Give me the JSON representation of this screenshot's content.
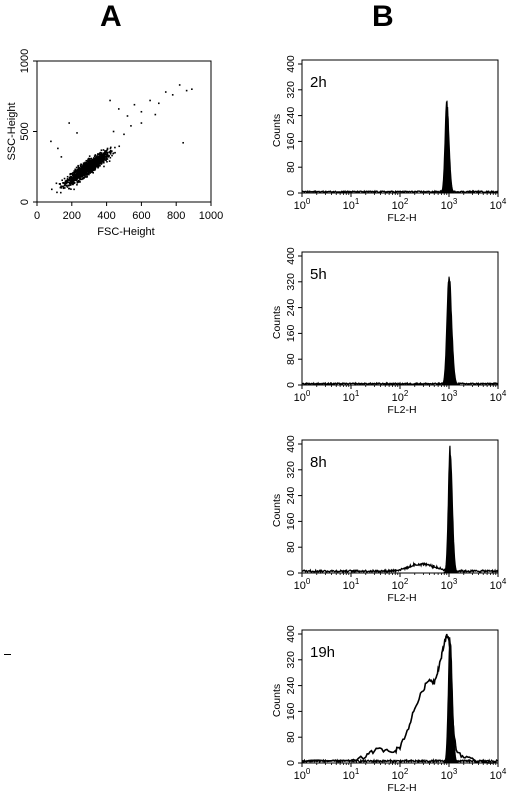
{
  "panel_labels": {
    "a": "A",
    "b": "B"
  },
  "chart_data": [
    {
      "type": "scatter",
      "panel": "A",
      "title": "",
      "xlabel": "FSC-Height",
      "ylabel": "SSC-Height",
      "xlim": [
        0,
        1000
      ],
      "ylim": [
        0,
        1000
      ],
      "xticks": [
        "0",
        "200",
        "400",
        "600",
        "800",
        "1000"
      ],
      "yticks": [
        "0",
        "500",
        "1000"
      ],
      "cluster": {
        "center_x": 290,
        "center_y": 240,
        "note_points": 1400
      },
      "outliers": [
        [
          80,
          430
        ],
        [
          140,
          320
        ],
        [
          185,
          560
        ],
        [
          120,
          380
        ],
        [
          230,
          490
        ],
        [
          470,
          660
        ],
        [
          520,
          610
        ],
        [
          560,
          690
        ],
        [
          600,
          640
        ],
        [
          650,
          720
        ],
        [
          700,
          700
        ],
        [
          740,
          780
        ],
        [
          780,
          760
        ],
        [
          820,
          830
        ],
        [
          860,
          790
        ],
        [
          890,
          800
        ],
        [
          600,
          560
        ],
        [
          540,
          540
        ],
        [
          680,
          620
        ],
        [
          840,
          420
        ],
        [
          420,
          720
        ],
        [
          440,
          500
        ],
        [
          500,
          480
        ]
      ]
    },
    {
      "type": "histogram",
      "panel": "B",
      "label": "2h",
      "xlabel": "FL2-H",
      "ylabel": "Counts",
      "x_scale": "log",
      "xlim": [
        1,
        10000
      ],
      "ylim": [
        0,
        400
      ],
      "yticks": [
        "0",
        "80",
        "160",
        "240",
        "320",
        "400"
      ],
      "xticks": [
        "10^0",
        "10^1",
        "10^2",
        "10^3",
        "10^4"
      ],
      "peak_x": 900,
      "peak_y": 290,
      "peak_width_decades": 0.05,
      "background_level": 4,
      "shoulder": null,
      "open_curve": null
    },
    {
      "type": "histogram",
      "panel": "B",
      "label": "5h",
      "xlabel": "FL2-H",
      "ylabel": "Counts",
      "x_scale": "log",
      "xlim": [
        1,
        10000
      ],
      "ylim": [
        0,
        400
      ],
      "yticks": [
        "0",
        "80",
        "160",
        "240",
        "320",
        "400"
      ],
      "xticks": [
        "10^0",
        "10^1",
        "10^2",
        "10^3",
        "10^4"
      ],
      "peak_x": 1000,
      "peak_y": 350,
      "peak_width_decades": 0.06,
      "background_level": 4,
      "shoulder": null,
      "open_curve": null
    },
    {
      "type": "histogram",
      "panel": "B",
      "label": "8h",
      "xlabel": "FL2-H",
      "ylabel": "Counts",
      "x_scale": "log",
      "xlim": [
        1,
        10000
      ],
      "ylim": [
        0,
        400
      ],
      "yticks": [
        "0",
        "80",
        "160",
        "240",
        "320",
        "400"
      ],
      "xticks": [
        "10^0",
        "10^1",
        "10^2",
        "10^3",
        "10^4"
      ],
      "peak_x": 1050,
      "peak_y": 400,
      "peak_width_decades": 0.05,
      "background_level": 6,
      "shoulder": {
        "center_x": 280,
        "height": 22,
        "width_decades": 0.35
      },
      "open_curve": null
    },
    {
      "type": "histogram",
      "panel": "B",
      "label": "19h",
      "xlabel": "FL2-H",
      "ylabel": "Counts",
      "x_scale": "log",
      "xlim": [
        1,
        10000
      ],
      "ylim": [
        0,
        400
      ],
      "yticks": [
        "0",
        "80",
        "160",
        "240",
        "320",
        "400"
      ],
      "xticks": [
        "10^0",
        "10^1",
        "10^2",
        "10^3",
        "10^4"
      ],
      "peak_x": 1050,
      "peak_y": 400,
      "peak_width_decades": 0.05,
      "background_level": 6,
      "shoulder": null,
      "open_curve": [
        [
          1,
          5
        ],
        [
          10,
          10
        ],
        [
          20,
          18
        ],
        [
          30,
          40
        ],
        [
          50,
          42
        ],
        [
          80,
          38
        ],
        [
          100,
          50
        ],
        [
          150,
          110
        ],
        [
          200,
          170
        ],
        [
          300,
          230
        ],
        [
          400,
          260
        ],
        [
          500,
          250
        ],
        [
          600,
          290
        ],
        [
          700,
          330
        ],
        [
          800,
          370
        ],
        [
          900,
          400
        ],
        [
          1000,
          380
        ],
        [
          1100,
          300
        ],
        [
          1200,
          120
        ],
        [
          1400,
          40
        ],
        [
          2000,
          18
        ],
        [
          3000,
          8
        ],
        [
          5000,
          5
        ],
        [
          10000,
          4
        ]
      ]
    }
  ]
}
